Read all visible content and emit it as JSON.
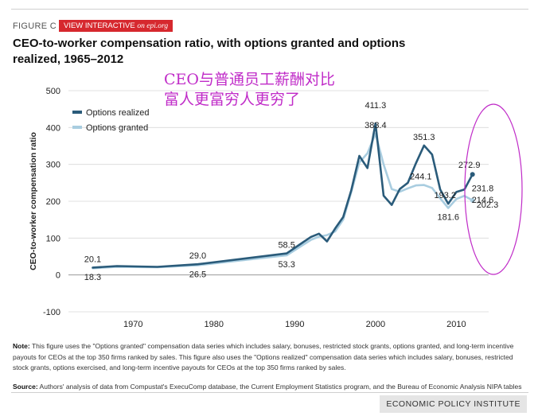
{
  "figure_label": "FIGURE C",
  "badge": {
    "text": "VIEW INTERACTIVE",
    "site": "on epi.org"
  },
  "title_lines": [
    "CEO-to-worker compensation ratio, with options granted and options",
    "realized, 1965–2012"
  ],
  "annotation_lines": [
    "CEO与普通员工薪酬对比",
    "富人更富穷人更穷了"
  ],
  "note": {
    "label": "Note:",
    "text": " This figure uses the \"Options granted\" compensation data series which includes salary, bonuses, restricted stock grants, options granted, and long-term incentive payouts for CEOs at the top 350 firms ranked by sales. This figure also uses the \"Options realized\" compensation data series which includes salary, bonuses, restricted stock grants, options exercised, and long-term incentive payouts for CEOs at the top 350 firms ranked by sales."
  },
  "source": {
    "label": "Source:",
    "text": " Authors' analysis of data from Compustat's ExecuComp database, the Current Employment Statistics program, and the Bureau of Economic Analysis NIPA tables"
  },
  "footer": "ECONOMIC POLICY INSTITUTE",
  "colors": {
    "realized": "#2a5b7a",
    "granted": "#a9cde0",
    "badge": "#d6282e",
    "annotation": "#c02cc8",
    "grid": "#d9d9d9"
  },
  "chart_data": {
    "type": "line",
    "ylabel": "CEO-to-worker compensation ratio",
    "xlim": [
      1962,
      2014
    ],
    "ylim": [
      -100,
      500
    ],
    "yticks": [
      -100,
      0,
      100,
      200,
      300,
      400,
      500
    ],
    "xticks": [
      1970,
      1980,
      1990,
      2000,
      2010
    ],
    "grid": true,
    "legend": "top-left",
    "series": [
      {
        "name": "Options realized",
        "x": [
          1965,
          1968,
          1973,
          1978,
          1989,
          1992,
          1993,
          1994,
          1995,
          1996,
          1997,
          1998,
          1999,
          2000,
          2001,
          2002,
          2003,
          2004,
          2005,
          2006,
          2007,
          2008,
          2009,
          2010,
          2011,
          2012
        ],
        "y": [
          20.1,
          24,
          22,
          29,
          58.5,
          103,
          112,
          91,
          126,
          157,
          230,
          323,
          290,
          411.3,
          215,
          190,
          233,
          250,
          303,
          351.3,
          327,
          232,
          193.2,
          225,
          231.8,
          272.9
        ]
      },
      {
        "name": "Options granted",
        "x": [
          1965,
          1968,
          1973,
          1978,
          1989,
          1992,
          1993,
          1994,
          1995,
          1996,
          1997,
          1998,
          1999,
          2000,
          2001,
          2002,
          2003,
          2004,
          2005,
          2006,
          2007,
          2008,
          2009,
          2010,
          2011,
          2012
        ],
        "y": [
          18.3,
          22,
          21,
          26.5,
          53.3,
          95,
          104,
          108,
          118,
          150,
          225,
          305,
          330,
          383.4,
          300,
          233,
          226,
          235,
          243,
          244.1,
          236,
          208,
          181.6,
          206,
          214.6,
          202.3
        ]
      }
    ],
    "data_labels": [
      {
        "text": "20.1",
        "x": 1965,
        "y": 20.1,
        "pos": "above"
      },
      {
        "text": "18.3",
        "x": 1965,
        "y": 18.3,
        "pos": "below"
      },
      {
        "text": "29.0",
        "x": 1978,
        "y": 29,
        "pos": "above"
      },
      {
        "text": "26.5",
        "x": 1978,
        "y": 26.5,
        "pos": "below"
      },
      {
        "text": "58.5",
        "x": 1989,
        "y": 58.5,
        "pos": "above"
      },
      {
        "text": "53.3",
        "x": 1989,
        "y": 53.3,
        "pos": "below"
      },
      {
        "text": "411.3",
        "x": 2000,
        "y": 411.3,
        "pos": "above2"
      },
      {
        "text": "383.4",
        "x": 2000,
        "y": 383.4,
        "pos": "above"
      },
      {
        "text": "351.3",
        "x": 2006,
        "y": 351.3,
        "pos": "above"
      },
      {
        "text": "244.1",
        "x": 2006,
        "y": 244.1,
        "pos": "aboveLeft"
      },
      {
        "text": "193.2",
        "x": 2009,
        "y": 193.2,
        "pos": "aboveLeft"
      },
      {
        "text": "181.6",
        "x": 2009,
        "y": 181.6,
        "pos": "below"
      },
      {
        "text": "272.9",
        "x": 2012,
        "y": 272.9,
        "pos": "above"
      },
      {
        "text": "231.8",
        "x": 2012,
        "y": 231.8,
        "pos": "right"
      },
      {
        "text": "214.6",
        "x": 2012,
        "y": 214.6,
        "pos": "right"
      },
      {
        "text": "202.3",
        "x": 2012,
        "y": 202.3,
        "pos": "right"
      }
    ]
  }
}
